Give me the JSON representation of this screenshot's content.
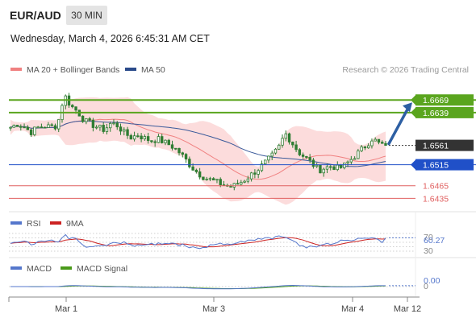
{
  "header": {
    "symbol": "EUR/AUD",
    "timeframe": "30 MIN",
    "datetime": "Wednesday, March 4, 2026 6:45:31 AM CET"
  },
  "legend": {
    "items": [
      {
        "label": "MA 20 + Bollinger Bands",
        "color": "#f08080"
      },
      {
        "label": "MA 50",
        "color": "#2a4a8a"
      }
    ],
    "credit": "Research © 2026 Trading Central"
  },
  "colors": {
    "candle": "#2e7d32",
    "target_line": "#5aa51e",
    "pivot_line": "#2050c8",
    "support_line": "#e06060",
    "current_price": "#333333",
    "arrow": "#2d5fa3",
    "bollinger_fill": "#fcd6d6",
    "rsi_line": "#5577cc",
    "rsi_signal": "#cc2222",
    "macd_line": "#5577cc",
    "macd_signal": "#4a9a1a"
  },
  "price_levels": [
    {
      "label": "1.6669",
      "value": 1.6669,
      "kind": "target"
    },
    {
      "label": "1.6639",
      "value": 1.6639,
      "kind": "target"
    },
    {
      "label": "1.6561",
      "value": 1.6561,
      "kind": "current"
    },
    {
      "label": "1.6515",
      "value": 1.6515,
      "kind": "pivot"
    },
    {
      "label": "1.6465",
      "value": 1.6465,
      "kind": "support"
    },
    {
      "label": "1.6435",
      "value": 1.6435,
      "kind": "support"
    }
  ],
  "rsi_panel": {
    "legend": [
      {
        "label": "RSI",
        "color": "#5577cc"
      },
      {
        "label": "9MA",
        "color": "#cc2222"
      }
    ],
    "value_label": "60.27",
    "level_labels": [
      "70",
      "30"
    ]
  },
  "macd_panel": {
    "legend": [
      {
        "label": "MACD",
        "color": "#5577cc"
      },
      {
        "label": "MACD Signal",
        "color": "#4a9a1a"
      }
    ],
    "value_label": "0.00",
    "zero_label": "0"
  },
  "x_axis": {
    "labels": [
      "Mar 1",
      "Mar 3",
      "Mar 4",
      "Mar 12"
    ]
  },
  "chart_data": {
    "type": "candlestick",
    "title": "EUR/AUD",
    "y_range": [
      1.6405,
      1.6725
    ],
    "series": [
      {
        "name": "MA 20 + Bollinger Bands"
      },
      {
        "name": "MA 50"
      }
    ],
    "close_path": [
      1.6604,
      1.6612,
      1.6606,
      1.6592,
      1.6603,
      1.6607,
      1.6605,
      1.6608,
      1.6682,
      1.6655,
      1.6642,
      1.662,
      1.6612,
      1.6604,
      1.6598,
      1.6614,
      1.6608,
      1.659,
      1.658,
      1.6586,
      1.6578,
      1.6572,
      1.6576,
      1.6568,
      1.656,
      1.6548,
      1.653,
      1.651,
      1.6495,
      1.6484,
      1.6478,
      1.6472,
      1.6466,
      1.6462,
      1.647,
      1.648,
      1.6492,
      1.6505,
      1.652,
      1.6535,
      1.6555,
      1.659,
      1.6568,
      1.6545,
      1.6532,
      1.6518,
      1.6502,
      1.6508,
      1.6512,
      1.6505,
      1.6515,
      1.653,
      1.6545,
      1.656,
      1.6578,
      1.6565,
      1.6561
    ],
    "last": 1.6561
  }
}
